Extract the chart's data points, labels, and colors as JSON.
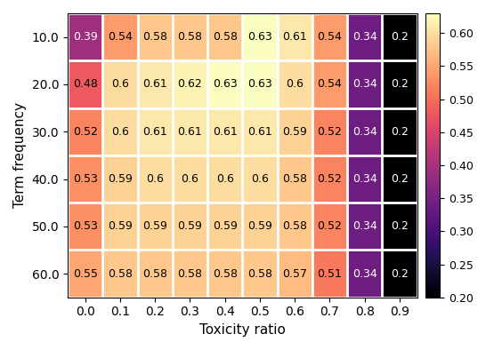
{
  "values": [
    [
      0.39,
      0.54,
      0.58,
      0.58,
      0.58,
      0.63,
      0.61,
      0.54,
      0.34,
      0.2
    ],
    [
      0.48,
      0.6,
      0.61,
      0.62,
      0.63,
      0.63,
      0.6,
      0.54,
      0.34,
      0.2
    ],
    [
      0.52,
      0.6,
      0.61,
      0.61,
      0.61,
      0.61,
      0.59,
      0.52,
      0.34,
      0.2
    ],
    [
      0.53,
      0.59,
      0.6,
      0.6,
      0.6,
      0.6,
      0.58,
      0.52,
      0.34,
      0.2
    ],
    [
      0.53,
      0.59,
      0.59,
      0.59,
      0.59,
      0.59,
      0.58,
      0.52,
      0.34,
      0.2
    ],
    [
      0.55,
      0.58,
      0.58,
      0.58,
      0.58,
      0.58,
      0.57,
      0.51,
      0.34,
      0.2
    ]
  ],
  "x_labels": [
    "0.0",
    "0.1",
    "0.2",
    "0.3",
    "0.4",
    "0.5",
    "0.6",
    "0.7",
    "0.8",
    "0.9"
  ],
  "y_labels": [
    "10.0",
    "20.0",
    "30.0",
    "40.0",
    "50.0",
    "60.0"
  ],
  "xlabel": "Toxicity ratio",
  "ylabel": "Term frequency",
  "colormap": "magma",
  "vmin": 0.2,
  "vmax": 0.63,
  "cbar_ticks": [
    0.2,
    0.25,
    0.3,
    0.35,
    0.4,
    0.45,
    0.5,
    0.55,
    0.6
  ],
  "linecolor": "white",
  "linewidth": 2,
  "annot_fontsize": 9,
  "figsize": [
    5.64,
    3.94
  ],
  "dpi": 100,
  "white_text_threshold": 0.465,
  "xlabel_fontsize": 11,
  "ylabel_fontsize": 11
}
